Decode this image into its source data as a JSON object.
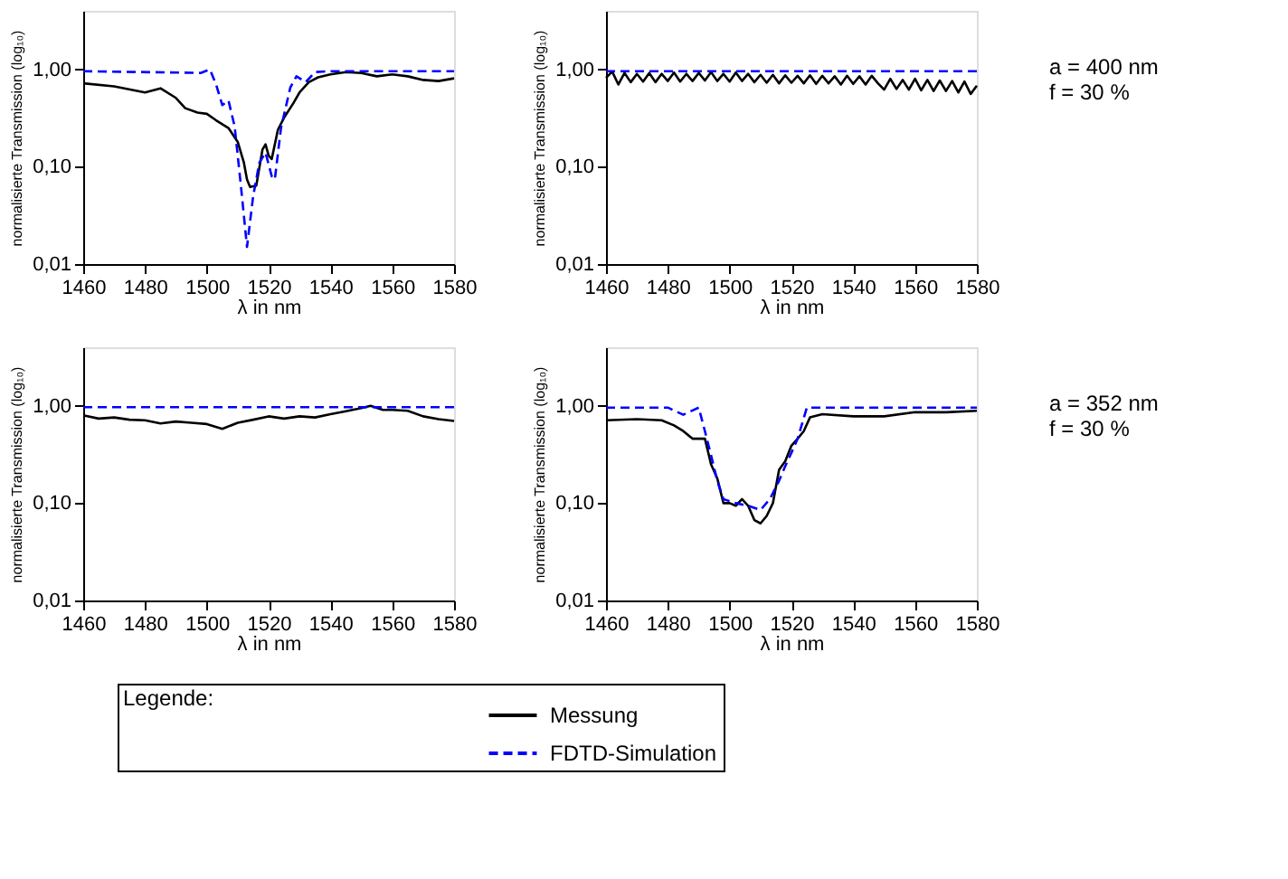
{
  "chart_data": [
    {
      "type": "line",
      "xlabel": "λ in nm",
      "ylabel": "normalisierte Transmission (log₁₀)",
      "log": true,
      "xlim": [
        1460,
        1580
      ],
      "ylim": [
        0.01,
        4
      ],
      "xticks": [
        1460,
        1480,
        1500,
        1520,
        1540,
        1560,
        1580
      ],
      "yticks": [
        {
          "value": 0.01,
          "label": "0,01"
        },
        {
          "value": 0.1,
          "label": "0,10"
        },
        {
          "value": 1,
          "label": "1,00"
        }
      ],
      "legend": "bottom",
      "legend_title": "Legende:",
      "series": [
        {
          "name": "Messung",
          "color": "#000000",
          "line_style": "solid",
          "x": [
            1460,
            1470,
            1480,
            1485,
            1490,
            1493,
            1497,
            1500,
            1503,
            1507,
            1510,
            1512,
            1513,
            1514,
            1516,
            1518,
            1519,
            1520,
            1521,
            1523,
            1525,
            1528,
            1530,
            1533,
            1536,
            1540,
            1545,
            1550,
            1555,
            1560,
            1565,
            1570,
            1575,
            1580
          ],
          "values": [
            0.72,
            0.67,
            0.58,
            0.64,
            0.51,
            0.4,
            0.36,
            0.35,
            0.3,
            0.25,
            0.18,
            0.11,
            0.074,
            0.062,
            0.064,
            0.15,
            0.17,
            0.13,
            0.12,
            0.24,
            0.32,
            0.45,
            0.58,
            0.74,
            0.83,
            0.89,
            0.94,
            0.92,
            0.85,
            0.89,
            0.85,
            0.78,
            0.76,
            0.81
          ]
        },
        {
          "name": "FDTD-Simulation",
          "color": "#0000ff",
          "line_style": "dashed",
          "x": [
            1460,
            1498,
            1501,
            1503,
            1505,
            1507,
            1509,
            1511,
            1513,
            1515,
            1517,
            1519,
            1521,
            1522,
            1524,
            1527,
            1529,
            1532,
            1535,
            1540,
            1580
          ],
          "values": [
            0.96,
            0.92,
            1.0,
            0.7,
            0.43,
            0.48,
            0.26,
            0.065,
            0.015,
            0.05,
            0.11,
            0.14,
            0.08,
            0.074,
            0.25,
            0.65,
            0.85,
            0.74,
            0.94,
            0.96,
            0.96
          ]
        }
      ]
    },
    {
      "type": "line",
      "xlabel": "λ in nm",
      "ylabel": "normalisierte Transmission (log₁₀)",
      "log": true,
      "xlim": [
        1460,
        1580
      ],
      "ylim": [
        0.01,
        4
      ],
      "xticks": [
        1460,
        1480,
        1500,
        1520,
        1540,
        1560,
        1580
      ],
      "yticks": [
        {
          "value": 0.01,
          "label": "0,01"
        },
        {
          "value": 0.1,
          "label": "0,10"
        },
        {
          "value": 1,
          "label": "1,00"
        }
      ],
      "annotations": [
        "a = 400 nm",
        "f = 30 %"
      ],
      "series": [
        {
          "name": "Messung",
          "color": "#000000",
          "line_style": "solid",
          "x": [
            1460,
            1462,
            1464,
            1466,
            1468,
            1470,
            1472,
            1474,
            1476,
            1478,
            1480,
            1482,
            1484,
            1486,
            1488,
            1490,
            1492,
            1494,
            1496,
            1498,
            1500,
            1502,
            1504,
            1506,
            1508,
            1510,
            1512,
            1514,
            1516,
            1518,
            1520,
            1522,
            1524,
            1526,
            1528,
            1530,
            1532,
            1534,
            1536,
            1538,
            1540,
            1542,
            1544,
            1546,
            1548,
            1550,
            1552,
            1554,
            1556,
            1558,
            1560,
            1562,
            1564,
            1566,
            1568,
            1570,
            1572,
            1574,
            1576,
            1578,
            1580
          ],
          "values": [
            0.82,
            0.95,
            0.7,
            0.92,
            0.74,
            0.9,
            0.75,
            0.92,
            0.74,
            0.9,
            0.76,
            0.93,
            0.75,
            0.9,
            0.76,
            0.92,
            0.77,
            0.94,
            0.76,
            0.9,
            0.75,
            0.93,
            0.76,
            0.9,
            0.74,
            0.88,
            0.73,
            0.88,
            0.72,
            0.87,
            0.73,
            0.86,
            0.72,
            0.87,
            0.71,
            0.86,
            0.72,
            0.85,
            0.7,
            0.86,
            0.71,
            0.85,
            0.7,
            0.86,
            0.72,
            0.62,
            0.8,
            0.63,
            0.78,
            0.62,
            0.8,
            0.61,
            0.78,
            0.6,
            0.77,
            0.6,
            0.76,
            0.58,
            0.75,
            0.56,
            0.68
          ]
        },
        {
          "name": "FDTD-Simulation",
          "color": "#0000ff",
          "line_style": "dashed",
          "x": [
            1460,
            1580
          ],
          "values": [
            0.96,
            0.96
          ]
        }
      ]
    },
    {
      "type": "line",
      "xlabel": "λ in nm",
      "ylabel": "normalisierte Transmission (log₁₀)",
      "log": true,
      "xlim": [
        1460,
        1580
      ],
      "ylim": [
        0.01,
        4
      ],
      "xticks": [
        1460,
        1480,
        1500,
        1520,
        1540,
        1560,
        1580
      ],
      "yticks": [
        {
          "value": 0.01,
          "label": "0,01"
        },
        {
          "value": 0.1,
          "label": "0,10"
        },
        {
          "value": 1,
          "label": "1,00"
        }
      ],
      "series": [
        {
          "name": "Messung",
          "color": "#000000",
          "line_style": "solid",
          "x": [
            1460,
            1465,
            1470,
            1475,
            1480,
            1485,
            1490,
            1495,
            1500,
            1505,
            1510,
            1515,
            1520,
            1525,
            1530,
            1535,
            1540,
            1545,
            1550,
            1553,
            1557,
            1560,
            1565,
            1570,
            1575,
            1580
          ],
          "values": [
            0.8,
            0.74,
            0.76,
            0.72,
            0.71,
            0.66,
            0.69,
            0.67,
            0.65,
            0.58,
            0.67,
            0.72,
            0.78,
            0.74,
            0.78,
            0.76,
            0.82,
            0.88,
            0.95,
            1.0,
            0.91,
            0.91,
            0.89,
            0.78,
            0.73,
            0.7
          ]
        },
        {
          "name": "FDTD-Simulation",
          "color": "#0000ff",
          "line_style": "dashed",
          "x": [
            1460,
            1580
          ],
          "values": [
            0.97,
            0.97
          ]
        }
      ]
    },
    {
      "type": "line",
      "xlabel": "λ in nm",
      "ylabel": "normalisierte Transmission (log₁₀)",
      "log": true,
      "xlim": [
        1460,
        1580
      ],
      "ylim": [
        0.01,
        4
      ],
      "xticks": [
        1460,
        1480,
        1500,
        1520,
        1540,
        1560,
        1580
      ],
      "yticks": [
        {
          "value": 0.01,
          "label": "0,01"
        },
        {
          "value": 0.1,
          "label": "0,10"
        },
        {
          "value": 1,
          "label": "1,00"
        }
      ],
      "annotations": [
        "a = 352 nm",
        "f = 30 %"
      ],
      "series": [
        {
          "name": "Messung",
          "color": "#000000",
          "line_style": "solid",
          "x": [
            1460,
            1470,
            1478,
            1482,
            1485,
            1488,
            1492,
            1494,
            1496,
            1498,
            1500,
            1502,
            1504,
            1506,
            1508,
            1510,
            1512,
            1514,
            1516,
            1518,
            1520,
            1522,
            1524,
            1526,
            1530,
            1540,
            1550,
            1560,
            1570,
            1580
          ],
          "values": [
            0.71,
            0.73,
            0.71,
            0.63,
            0.55,
            0.46,
            0.46,
            0.25,
            0.18,
            0.1,
            0.1,
            0.094,
            0.11,
            0.094,
            0.067,
            0.062,
            0.074,
            0.1,
            0.22,
            0.27,
            0.39,
            0.46,
            0.55,
            0.76,
            0.82,
            0.78,
            0.78,
            0.86,
            0.86,
            0.89
          ]
        },
        {
          "name": "FDTD-Simulation",
          "color": "#0000ff",
          "line_style": "dashed",
          "x": [
            1460,
            1480,
            1485,
            1490,
            1492,
            1494,
            1496,
            1498,
            1502,
            1506,
            1510,
            1513,
            1516,
            1518,
            1520,
            1522,
            1525,
            1580
          ],
          "values": [
            0.96,
            0.96,
            0.81,
            0.96,
            0.55,
            0.31,
            0.17,
            0.11,
            0.1,
            0.094,
            0.085,
            0.11,
            0.17,
            0.24,
            0.33,
            0.46,
            0.96,
            0.96
          ]
        }
      ]
    }
  ]
}
